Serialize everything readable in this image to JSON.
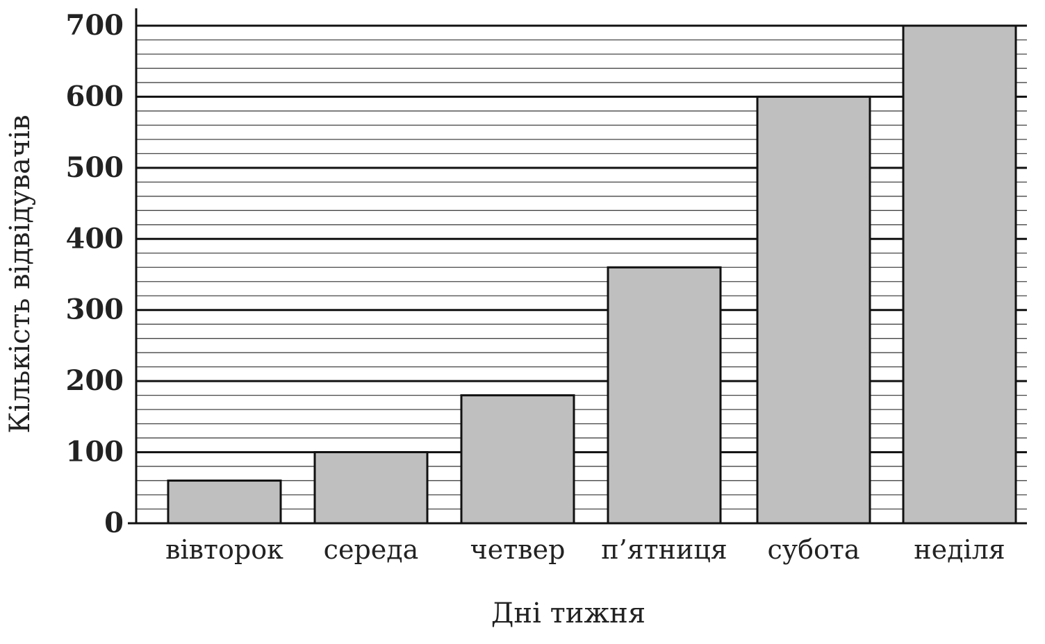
{
  "chart_data": {
    "type": "bar",
    "categories": [
      "вівторок",
      "середа",
      "четвер",
      "п’ятниця",
      "субота",
      "неділя"
    ],
    "values": [
      60,
      100,
      180,
      360,
      600,
      700
    ],
    "xlabel": "Дні тижня",
    "ylabel": "Кількість відвідувачів",
    "ylim": [
      0,
      700
    ],
    "yticks": [
      "0",
      "100",
      "200",
      "300",
      "400",
      "500",
      "600",
      "700"
    ],
    "grid": "horizontal, major every 100, minor every 20",
    "legend": "none",
    "colors": {
      "bar_fill": "#bfbfbf",
      "bar_edge": "#111111",
      "grid": "#111111"
    }
  }
}
